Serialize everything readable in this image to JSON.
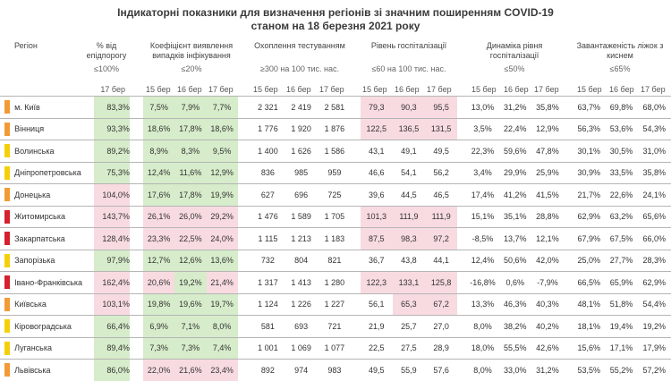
{
  "title": {
    "line1": "Індикаторні показники для визначення регіонів зі значним поширенням COVID-19",
    "line2": "станом на 18 березня 2021 року"
  },
  "headers": {
    "region": "Регіон",
    "pct_threshold": {
      "name": "% від епідпорогу",
      "threshold": "≤100%"
    },
    "detection": {
      "name": "Коефіцієнт виявлення випадків інфікування",
      "threshold": "≤20%"
    },
    "testing": {
      "name": "Охоплення тестуванням",
      "threshold": "≥300 на 100 тис. нас."
    },
    "hospitalization": {
      "name": "Рівень госпіталізації",
      "threshold": "≤60 на 100 тис. нас."
    },
    "dynamics": {
      "name": "Динаміка рівня госпіталізації",
      "threshold": "≤50%"
    },
    "beds": {
      "name": "Завантаженість ліжок з киснем",
      "threshold": "≤65%"
    }
  },
  "dates": {
    "d15": "15 бер",
    "d16": "16 бер",
    "d17": "17 бер"
  },
  "colors": {
    "orange": "#f39a36",
    "yellow": "#f5d00a",
    "red": "#d5202e",
    "green_bg": "#d6ecca",
    "red_bg": "#f8dbe1"
  },
  "rows": [
    {
      "status": "orange",
      "region": "м. Київ",
      "pct": "83,3%",
      "det": [
        "7,5%",
        "7,9%",
        "7,7%"
      ],
      "test": [
        "2 321",
        "2 419",
        "2 581"
      ],
      "hosp": [
        "79,3",
        "90,3",
        "95,5"
      ],
      "dyn": [
        "13,0%",
        "31,2%",
        "35,8%"
      ],
      "beds": [
        "63,7%",
        "69,8%",
        "68,0%"
      ]
    },
    {
      "status": "orange",
      "region": "Вінниця",
      "pct": "93,3%",
      "det": [
        "18,6%",
        "17,8%",
        "18,6%"
      ],
      "test": [
        "1 776",
        "1 920",
        "1 876"
      ],
      "hosp": [
        "122,5",
        "136,5",
        "131,5"
      ],
      "dyn": [
        "3,5%",
        "22,4%",
        "12,9%"
      ],
      "beds": [
        "56,3%",
        "53,6%",
        "54,3%"
      ]
    },
    {
      "status": "yellow",
      "region": "Волинська",
      "pct": "89,2%",
      "det": [
        "8,9%",
        "8,3%",
        "9,5%"
      ],
      "test": [
        "1 400",
        "1 626",
        "1 586"
      ],
      "hosp": [
        "43,1",
        "49,1",
        "49,5"
      ],
      "dyn": [
        "22,3%",
        "59,6%",
        "47,8%"
      ],
      "beds": [
        "30,1%",
        "30,5%",
        "31,0%"
      ]
    },
    {
      "status": "yellow",
      "region": "Дніпропетровська",
      "pct": "75,3%",
      "det": [
        "12,4%",
        "11,6%",
        "12,9%"
      ],
      "test": [
        "836",
        "985",
        "959"
      ],
      "hosp": [
        "46,6",
        "54,1",
        "56,2"
      ],
      "dyn": [
        "3,4%",
        "29,9%",
        "25,9%"
      ],
      "beds": [
        "30,9%",
        "33,5%",
        "35,8%"
      ]
    },
    {
      "status": "orange",
      "region": "Донецька",
      "pct": "104,0%",
      "det": [
        "17,6%",
        "17,8%",
        "19,9%"
      ],
      "test": [
        "627",
        "696",
        "725"
      ],
      "hosp": [
        "39,6",
        "44,5",
        "46,5"
      ],
      "dyn": [
        "17,4%",
        "41,2%",
        "41,5%"
      ],
      "beds": [
        "21,7%",
        "22,6%",
        "24,1%"
      ]
    },
    {
      "status": "red",
      "region": "Житомирська",
      "pct": "143,7%",
      "det": [
        "26,1%",
        "26,0%",
        "29,2%"
      ],
      "test": [
        "1 476",
        "1 589",
        "1 705"
      ],
      "hosp": [
        "101,3",
        "111,9",
        "111,9"
      ],
      "dyn": [
        "15,1%",
        "35,1%",
        "28,8%"
      ],
      "beds": [
        "62,9%",
        "63,2%",
        "65,6%"
      ]
    },
    {
      "status": "red",
      "region": "Закарпатська",
      "pct": "128,4%",
      "det": [
        "23,3%",
        "22,5%",
        "24,0%"
      ],
      "test": [
        "1 115",
        "1 213",
        "1 183"
      ],
      "hosp": [
        "87,5",
        "98,3",
        "97,2"
      ],
      "dyn": [
        "-8,5%",
        "13,7%",
        "12,1%"
      ],
      "beds": [
        "67,9%",
        "67,5%",
        "66,0%"
      ]
    },
    {
      "status": "yellow",
      "region": "Запорізька",
      "pct": "97,9%",
      "det": [
        "12,7%",
        "12,6%",
        "13,6%"
      ],
      "test": [
        "732",
        "804",
        "821"
      ],
      "hosp": [
        "36,7",
        "43,8",
        "44,1"
      ],
      "dyn": [
        "12,4%",
        "50,6%",
        "42,0%"
      ],
      "beds": [
        "25,0%",
        "27,7%",
        "28,3%"
      ]
    },
    {
      "status": "red",
      "region": "Івано-Франківська",
      "pct": "162,4%",
      "det": [
        "20,6%",
        "19,2%",
        "21,4%"
      ],
      "test": [
        "1 317",
        "1 413",
        "1 280"
      ],
      "hosp": [
        "122,3",
        "133,1",
        "125,8"
      ],
      "dyn": [
        "-16,8%",
        "0,6%",
        "-7,9%"
      ],
      "beds": [
        "66,5%",
        "65,9%",
        "62,9%"
      ]
    },
    {
      "status": "orange",
      "region": "Київська",
      "pct": "103,1%",
      "det": [
        "19,8%",
        "19,6%",
        "19,7%"
      ],
      "test": [
        "1 124",
        "1 226",
        "1 227"
      ],
      "hosp": [
        "56,1",
        "65,3",
        "67,2"
      ],
      "dyn": [
        "13,3%",
        "46,3%",
        "40,3%"
      ],
      "beds": [
        "48,1%",
        "51,8%",
        "54,4%"
      ]
    },
    {
      "status": "yellow",
      "region": "Кіровоградська",
      "pct": "66,4%",
      "det": [
        "6,9%",
        "7,1%",
        "8,0%"
      ],
      "test": [
        "581",
        "693",
        "721"
      ],
      "hosp": [
        "21,9",
        "25,7",
        "27,0"
      ],
      "dyn": [
        "8,0%",
        "38,2%",
        "40,2%"
      ],
      "beds": [
        "18,1%",
        "19,4%",
        "19,2%"
      ]
    },
    {
      "status": "yellow",
      "region": "Луганська",
      "pct": "89,4%",
      "det": [
        "7,3%",
        "7,3%",
        "7,4%"
      ],
      "test": [
        "1 001",
        "1 069",
        "1 077"
      ],
      "hosp": [
        "22,5",
        "27,5",
        "28,9"
      ],
      "dyn": [
        "18,0%",
        "55,5%",
        "42,6%"
      ],
      "beds": [
        "15,6%",
        "17,1%",
        "17,9%"
      ]
    },
    {
      "status": "orange",
      "region": "Львівська",
      "pct": "86,0%",
      "det": [
        "22,0%",
        "21,6%",
        "23,4%"
      ],
      "test": [
        "892",
        "974",
        "983"
      ],
      "hosp": [
        "49,5",
        "55,9",
        "57,6"
      ],
      "dyn": [
        "8,0%",
        "33,0%",
        "31,2%"
      ],
      "beds": [
        "53,5%",
        "55,2%",
        "57,2%"
      ]
    }
  ]
}
